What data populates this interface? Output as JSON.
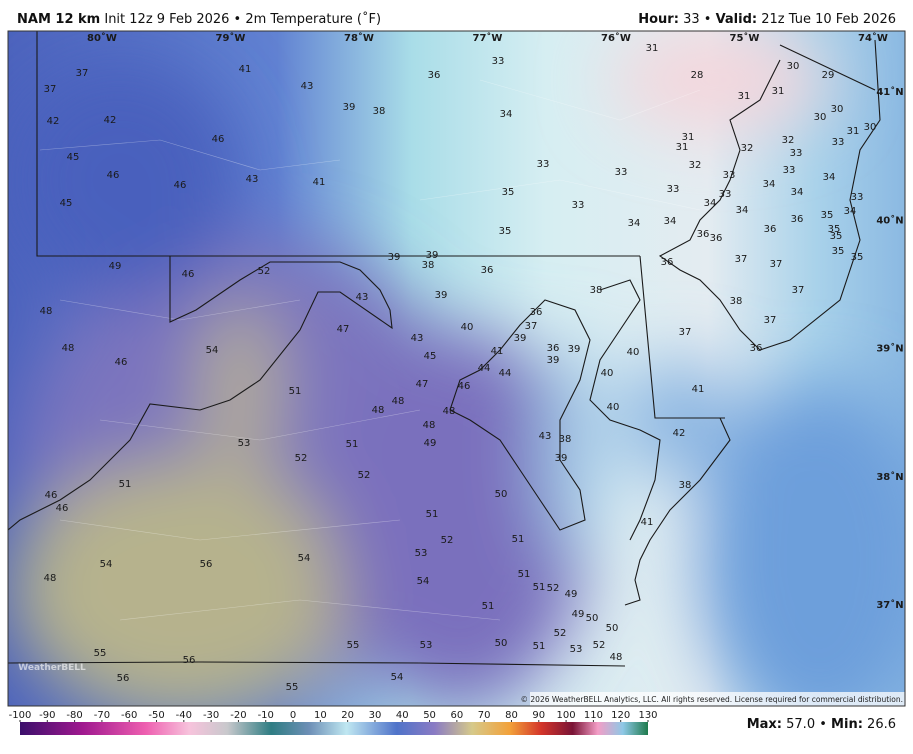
{
  "header": {
    "model": "NAM 12 km",
    "init": "Init 12z 9 Feb 2026 • 2m Temperature (˚F)",
    "hour_label": "Hour:",
    "hour": "33",
    "separator": "•",
    "valid_label": "Valid:",
    "valid": "21z Tue 10 Feb 2026"
  },
  "map": {
    "lon_labels": [
      "80˚W",
      "79˚W",
      "78˚W",
      "77˚W",
      "76˚W",
      "75˚W",
      "74˚W"
    ],
    "lat_labels": [
      "41˚N",
      "40˚N",
      "39˚N",
      "38˚N",
      "37˚N"
    ],
    "temperatures": [
      37,
      37,
      41,
      43,
      36,
      33,
      31,
      28,
      30,
      29,
      31,
      31,
      42,
      42,
      39,
      38,
      34,
      30,
      30,
      31,
      30,
      46,
      31,
      31,
      32,
      32,
      33,
      45,
      33,
      46,
      46,
      43,
      41,
      33,
      33,
      32,
      33,
      33,
      34,
      35,
      33,
      33,
      33,
      34,
      34,
      45,
      34,
      34,
      33,
      34,
      34,
      34,
      36,
      35,
      35,
      36,
      36,
      36,
      35,
      35,
      35,
      35,
      49,
      46,
      52,
      39,
      39,
      38,
      36,
      36,
      37,
      37,
      38,
      43,
      39,
      37,
      48,
      40,
      36,
      37,
      47,
      39,
      37,
      38,
      37,
      48,
      54,
      43,
      41,
      36,
      39,
      40,
      46,
      45,
      44,
      44,
      39,
      40,
      36,
      51,
      47,
      46,
      41,
      48,
      48,
      48,
      40,
      48,
      49,
      43,
      38,
      42,
      53,
      51,
      39,
      52,
      52,
      51,
      46,
      46,
      50,
      38,
      51,
      41,
      52,
      51,
      53,
      54,
      56,
      54,
      54,
      51,
      48,
      51,
      52,
      49,
      51,
      49,
      50,
      52,
      50,
      55,
      53,
      50,
      51,
      53,
      52,
      55,
      56,
      48,
      56,
      54,
      55
    ],
    "logo": "WeatherBELL",
    "copyright": "© 2026 WeatherBELL Analytics, LLC. All rights reserved. License required for commercial distribution."
  },
  "colorbar": {
    "ticks": [
      -100,
      -90,
      -80,
      -70,
      -60,
      -50,
      -40,
      -30,
      -20,
      -10,
      0,
      10,
      20,
      30,
      40,
      50,
      60,
      70,
      80,
      90,
      100,
      110,
      120,
      130
    ]
  },
  "footer": {
    "max_label": "Max:",
    "max": "57.0",
    "separator": "•",
    "min_label": "Min:",
    "min": "26.6"
  }
}
